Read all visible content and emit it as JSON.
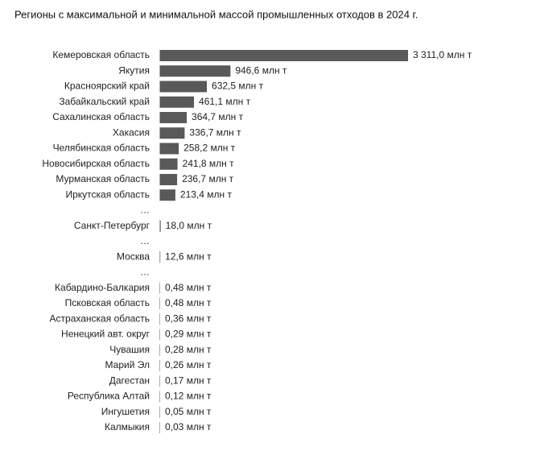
{
  "chart_data": {
    "type": "bar",
    "orientation": "horizontal",
    "title": "Регионы с максимальной и минимальной массой промышленных отходов в 2024 г.",
    "color": "#595959",
    "categories": [
      "Кемеровская область",
      "Якутия",
      "Красноярский край",
      "Забайкальский край",
      "Сахалинская область",
      "Хакасия",
      "Челябинская область",
      "Новосибирская область",
      "Мурманская область",
      "Иркутская область",
      "…",
      "Санкт-Петербург",
      "…",
      "Москва",
      "…",
      "Кабардино-Балкария",
      "Псковская область",
      "Астраханская область",
      "Ненецкий авт. округ",
      "Чувашия",
      "Марий Эл",
      "Дагестан",
      "Республика Алтай",
      "Ингушетия",
      "Калмыкия"
    ],
    "values": [
      3311.0,
      946.6,
      632.5,
      461.1,
      364.7,
      336.7,
      258.2,
      241.8,
      236.7,
      213.4,
      null,
      18.0,
      null,
      12.6,
      null,
      0.48,
      0.48,
      0.36,
      0.29,
      0.28,
      0.26,
      0.17,
      0.12,
      0.05,
      0.03
    ],
    "value_labels": [
      "3 311,0 млн т",
      "946,6 млн т",
      "632,5 млн т",
      "461,1 млн т",
      "364,7 млн т",
      "336,7 млн т",
      "258,2 млн т",
      "241,8 млн т",
      "236,7 млн т",
      "213,4 млн т",
      null,
      "18,0 млн т",
      null,
      "12,6 млн т",
      null,
      "0,48 млн т",
      "0,48 млн т",
      "0,36 млн т",
      "0,29 млн т",
      "0,28 млн т",
      "0,26 млн т",
      "0,17 млн т",
      "0,12 млн т",
      "0,05 млн т",
      "0,03 млн т"
    ]
  }
}
